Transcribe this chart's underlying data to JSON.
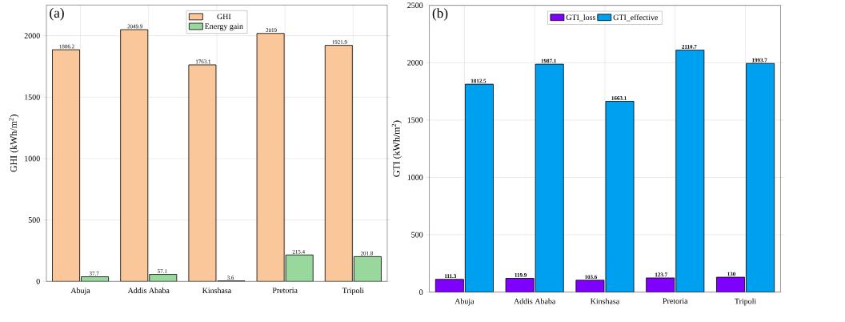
{
  "chart_data": [
    {
      "type": "bar",
      "ylabel": "GHI (kWh/m$^{2}$)",
      "annotations": [
        "(a)"
      ],
      "categories": [
        "Abuja",
        "Addis Ababa",
        "Kinshasa",
        "Pretoria",
        "Tripoli"
      ],
      "series": [
        {
          "name": "GHI",
          "color": "#f9c79a",
          "values": [
            1886.2,
            2049.9,
            1763.1,
            2019,
            1921.9
          ]
        },
        {
          "name": "Energy gain",
          "color": "#98d89c",
          "values": [
            37.7,
            57.1,
            3.6,
            215.4,
            201.8
          ]
        }
      ],
      "ylim": [
        0,
        2250
      ],
      "yticks": [
        0,
        500,
        1000,
        1500,
        2000
      ],
      "grid": true,
      "legend": "top",
      "data_labels": true
    },
    {
      "type": "bar",
      "ylabel": "GTI (kWh/m$^{2}$)",
      "annotations": [
        "(b)"
      ],
      "categories": [
        "Abuja",
        "Addis Ababa",
        "Kinshasa",
        "Pretoria",
        "Tripoli"
      ],
      "series": [
        {
          "name": "GTI_loss",
          "color": "#8000ff",
          "values": [
            111.3,
            119.9,
            103.6,
            123.7,
            130
          ]
        },
        {
          "name": "GTI_effective",
          "color": "#00a0f0",
          "values": [
            1812.5,
            1987.1,
            1663.1,
            2110.7,
            1993.7
          ]
        }
      ],
      "ylim": [
        0,
        2500
      ],
      "yticks": [
        0,
        500,
        1000,
        1500,
        2000,
        2500
      ],
      "grid": true,
      "legend": "top",
      "data_labels": true
    }
  ]
}
